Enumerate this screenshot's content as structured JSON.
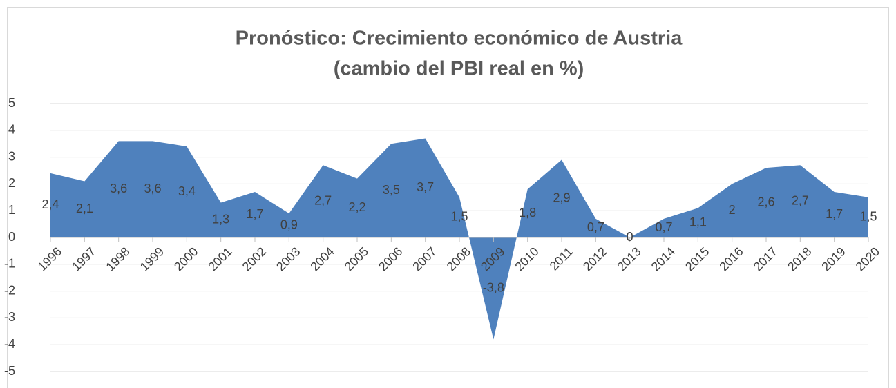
{
  "chart_data": {
    "type": "area",
    "title": [
      "Pronóstico: Crecimiento económico de Austria",
      "(cambio del PBI real en %)"
    ],
    "categories": [
      "1996",
      "1997",
      "1998",
      "1999",
      "2000",
      "2001",
      "2002",
      "2003",
      "2004",
      "2005",
      "2006",
      "2007",
      "2008",
      "2009",
      "2010",
      "2011",
      "2012",
      "2013",
      "2014",
      "2015",
      "2016",
      "2017",
      "2018",
      "2019",
      "2020"
    ],
    "values": [
      2.4,
      2.1,
      3.6,
      3.6,
      3.4,
      1.3,
      1.7,
      0.9,
      2.7,
      2.2,
      3.5,
      3.7,
      1.5,
      -3.8,
      1.8,
      2.9,
      0.7,
      0,
      0.7,
      1.1,
      2,
      2.6,
      2.7,
      1.7,
      1.5
    ],
    "value_labels": [
      "2,4",
      "2,1",
      "3,6",
      "3,6",
      "3,4",
      "1,3",
      "1,7",
      "0,9",
      "2,7",
      "2,2",
      "3,5",
      "3,7",
      "1,5",
      "-3,8",
      "1,8",
      "2,9",
      "0,7",
      "0",
      "0,7",
      "1,1",
      "2",
      "2,6",
      "2,7",
      "1,7",
      "1,5"
    ],
    "color": "#4f81bd",
    "ylim": [
      -5,
      5
    ],
    "yticks": [
      -5,
      -4,
      -3,
      -2,
      -1,
      0,
      1,
      2,
      3,
      4,
      5
    ],
    "grid": true
  }
}
